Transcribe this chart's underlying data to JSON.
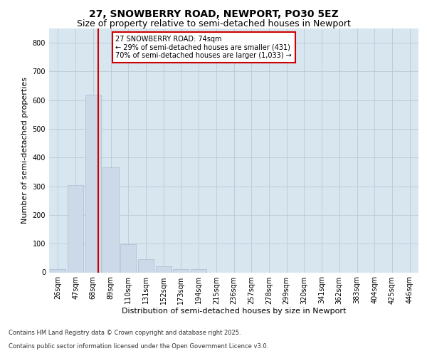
{
  "title_line1": "27, SNOWBERRY ROAD, NEWPORT, PO30 5EZ",
  "title_line2": "Size of property relative to semi-detached houses in Newport",
  "xlabel": "Distribution of semi-detached houses by size in Newport",
  "ylabel": "Number of semi-detached properties",
  "categories": [
    "26sqm",
    "47sqm",
    "68sqm",
    "89sqm",
    "110sqm",
    "131sqm",
    "152sqm",
    "173sqm",
    "194sqm",
    "215sqm",
    "236sqm",
    "257sqm",
    "278sqm",
    "299sqm",
    "320sqm",
    "341sqm",
    "362sqm",
    "383sqm",
    "404sqm",
    "425sqm",
    "446sqm"
  ],
  "values": [
    12,
    305,
    620,
    365,
    98,
    47,
    20,
    10,
    10,
    0,
    0,
    0,
    0,
    0,
    0,
    0,
    0,
    0,
    0,
    0,
    0
  ],
  "bar_color": "#ccd9e8",
  "bar_edge_color": "#aabdd0",
  "grid_color": "#b8cad8",
  "background_color": "#d8e6f0",
  "annotation_text": "27 SNOWBERRY ROAD: 74sqm\n← 29% of semi-detached houses are smaller (431)\n70% of semi-detached houses are larger (1,033) →",
  "ylim": [
    0,
    850
  ],
  "yticks": [
    0,
    100,
    200,
    300,
    400,
    500,
    600,
    700,
    800
  ],
  "footer_line1": "Contains HM Land Registry data © Crown copyright and database right 2025.",
  "footer_line2": "Contains public sector information licensed under the Open Government Licence v3.0.",
  "annotation_box_color": "#ffffff",
  "annotation_box_edge_color": "#cc0000",
  "property_line_color": "#cc0000",
  "title1_fontsize": 10,
  "title2_fontsize": 9,
  "tick_fontsize": 7,
  "ylabel_fontsize": 8,
  "xlabel_fontsize": 8,
  "footer_fontsize": 6,
  "annot_fontsize": 7
}
